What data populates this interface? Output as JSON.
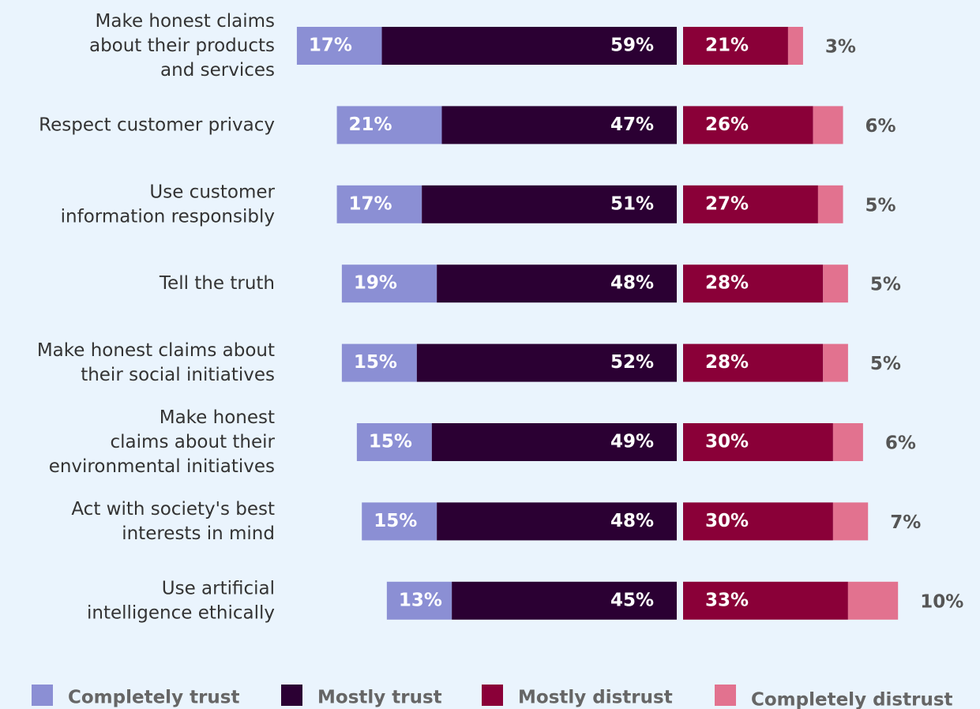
{
  "chart_data": {
    "type": "diverging-bar",
    "categories": [
      "Make honest claims\nabout their products\nand services",
      "Respect customer privacy",
      "Use customer\ninformation responsibly",
      "Tell the truth",
      "Make honest claims about\ntheir social initiatives",
      "Make honest\nclaims about their\nenvironmental initiatives",
      "Act with society's best\ninterests in mind",
      "Use artificial\nintelligence ethically"
    ],
    "series": [
      {
        "name": "Completely trust",
        "color": "#8b8fd4",
        "side": "trust",
        "values": [
          17,
          21,
          17,
          19,
          15,
          15,
          15,
          13
        ],
        "value_labels": [
          "17%",
          "21%",
          "17%",
          "19%",
          "15%",
          "15%",
          "15%",
          "13%"
        ]
      },
      {
        "name": "Mostly trust",
        "color": "#2b0033",
        "side": "trust",
        "values": [
          59,
          47,
          51,
          48,
          52,
          49,
          48,
          45
        ],
        "value_labels": [
          "59%",
          "47%",
          "51%",
          "48%",
          "52%",
          "49%",
          "48%",
          "45%"
        ]
      },
      {
        "name": "Mostly distrust",
        "color": "#8a0038",
        "side": "distrust",
        "values": [
          21,
          26,
          27,
          28,
          28,
          30,
          30,
          33
        ],
        "value_labels": [
          "21%",
          "26%",
          "27%",
          "28%",
          "28%",
          "30%",
          "30%",
          "33%"
        ]
      },
      {
        "name": "Completely distrust",
        "color": "#e2728f",
        "side": "distrust",
        "values": [
          3,
          6,
          5,
          5,
          5,
          6,
          7,
          10
        ],
        "value_labels": [
          "3%",
          "6%",
          "5%",
          "5%",
          "5%",
          "6%",
          "7%",
          "10%"
        ]
      }
    ]
  }
}
